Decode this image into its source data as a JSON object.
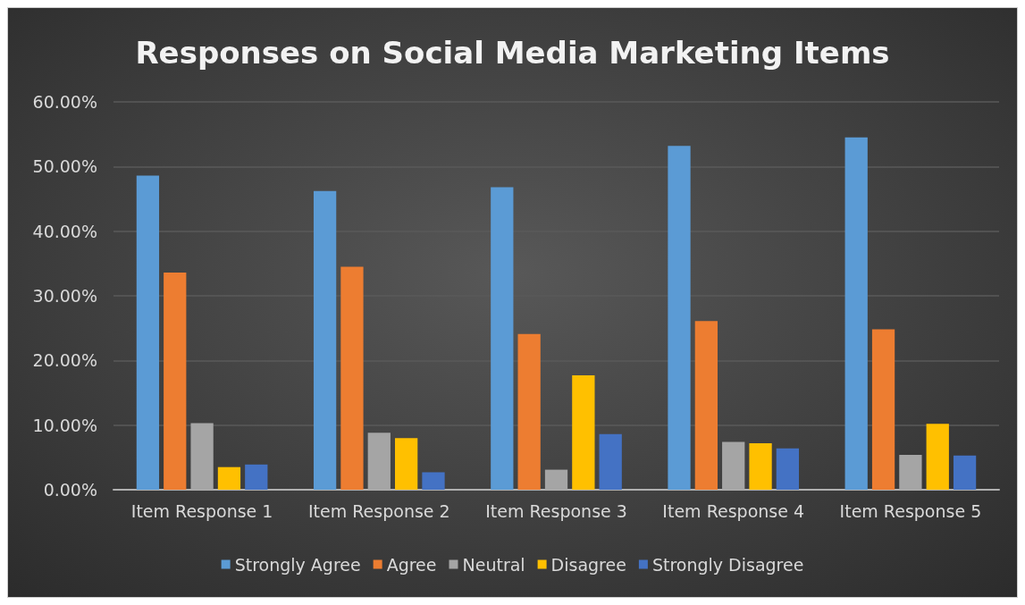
{
  "chart_data": {
    "type": "bar",
    "title": "Responses on Social Media Marketing Items",
    "categories": [
      "Item Response 1",
      "Item Response 2",
      "Item Response 3",
      "Item Response 4",
      "Item Response 5"
    ],
    "series": [
      {
        "name": "Strongly Agree",
        "color": "#5b9bd5",
        "values": [
          48.6,
          46.2,
          46.8,
          53.2,
          54.5
        ]
      },
      {
        "name": "Agree",
        "color": "#ed7d31",
        "values": [
          33.6,
          34.5,
          24.1,
          26.1,
          24.8
        ]
      },
      {
        "name": "Neutral",
        "color": "#a5a5a5",
        "values": [
          10.3,
          8.8,
          3.1,
          7.4,
          5.4
        ]
      },
      {
        "name": "Disagree",
        "color": "#ffc000",
        "values": [
          3.5,
          8.0,
          17.7,
          7.2,
          10.2
        ]
      },
      {
        "name": "Strongly Disagree",
        "color": "#4472c4",
        "values": [
          3.9,
          2.7,
          8.6,
          6.4,
          5.3
        ]
      }
    ],
    "ylim": [
      0,
      60
    ],
    "yticks": [
      {
        "value": 0,
        "label": "0.00%"
      },
      {
        "value": 10,
        "label": "10.00%"
      },
      {
        "value": 20,
        "label": "20.00%"
      },
      {
        "value": 30,
        "label": "30.00%"
      },
      {
        "value": 40,
        "label": "40.00%"
      },
      {
        "value": 50,
        "label": "50.00%"
      },
      {
        "value": 60,
        "label": "60.00%"
      }
    ],
    "grid": "y",
    "legend": "bottom"
  }
}
